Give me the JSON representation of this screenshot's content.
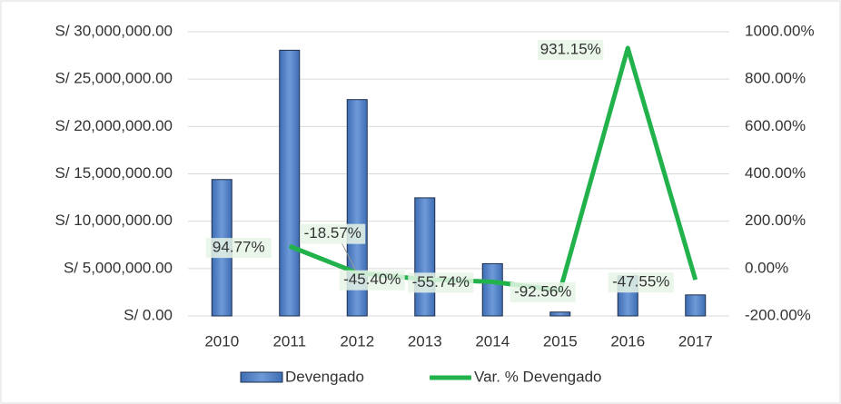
{
  "chart_data": {
    "type": "bar_line",
    "categories": [
      "2010",
      "2011",
      "2012",
      "2013",
      "2014",
      "2015",
      "2016",
      "2017"
    ],
    "series": [
      {
        "name": "Devengado",
        "type": "bar",
        "color": "#4a7cc2",
        "axis": "y",
        "values": [
          14400000,
          28050000,
          22840000,
          12470000,
          5520000,
          410000,
          4230000,
          2220000
        ]
      },
      {
        "name": "Var. % Devengado",
        "type": "line",
        "color": "#22b24c",
        "axis": "y2",
        "values": [
          null,
          94.77,
          -18.57,
          -45.4,
          -55.74,
          -92.56,
          931.15,
          -47.55
        ],
        "value_labels": [
          null,
          "94.77%",
          "-18.57%",
          "-45.40%",
          "-55.74%",
          "-92.56%",
          "931.15%",
          "-47.55%"
        ]
      }
    ],
    "ylim": [
      0,
      30000000
    ],
    "yticks": [
      {
        "value": 0,
        "label": "S/ 0.00"
      },
      {
        "value": 5000000,
        "label": "S/ 5,000,000.00"
      },
      {
        "value": 10000000,
        "label": "S/ 10,000,000.00"
      },
      {
        "value": 15000000,
        "label": "S/ 15,000,000.00"
      },
      {
        "value": 20000000,
        "label": "S/ 20,000,000.00"
      },
      {
        "value": 25000000,
        "label": "S/ 25,000,000.00"
      },
      {
        "value": 30000000,
        "label": "S/ 30,000,000.00"
      }
    ],
    "y2lim": [
      -200,
      1000
    ],
    "y2ticks": [
      {
        "value": -200,
        "label": "-200.00%"
      },
      {
        "value": 0,
        "label": "0.00%"
      },
      {
        "value": 200,
        "label": "200.00%"
      },
      {
        "value": 400,
        "label": "400.00%"
      },
      {
        "value": 600,
        "label": "600.00%"
      },
      {
        "value": 800,
        "label": "800.00%"
      },
      {
        "value": 1000,
        "label": "1000.00%"
      }
    ],
    "grid": true,
    "legend": "bottom"
  }
}
